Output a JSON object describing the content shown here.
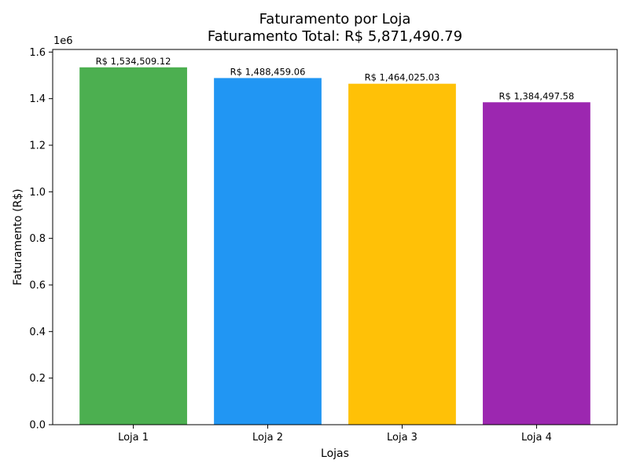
{
  "chart_data": {
    "type": "bar",
    "title": "Faturamento por Loja",
    "subtitle": "Faturamento Total: R$ 5,871,490.79",
    "xlabel": "Lojas",
    "ylabel": "Faturamento (R$)",
    "y_offset_text": "1e6",
    "categories": [
      "Loja 1",
      "Loja 2",
      "Loja 3",
      "Loja 4"
    ],
    "values": [
      1534509.12,
      1488459.06,
      1464025.03,
      1384497.58
    ],
    "data_labels": [
      "R$ 1,534,509.12",
      "R$ 1,488,459.06",
      "R$ 1,464,025.03",
      "R$ 1,384,497.58"
    ],
    "colors": [
      "#4caf50",
      "#2196f3",
      "#ffc107",
      "#9c27b0"
    ],
    "ylim": [
      0,
      1611234.58
    ],
    "yticks": [
      0,
      200000,
      400000,
      600000,
      800000,
      1000000,
      1200000,
      1400000,
      1600000
    ],
    "ytick_labels": [
      "0.0",
      "0.2",
      "0.4",
      "0.6",
      "0.8",
      "1.0",
      "1.2",
      "1.4",
      "1.6"
    ],
    "grid": false,
    "legend": "none"
  }
}
